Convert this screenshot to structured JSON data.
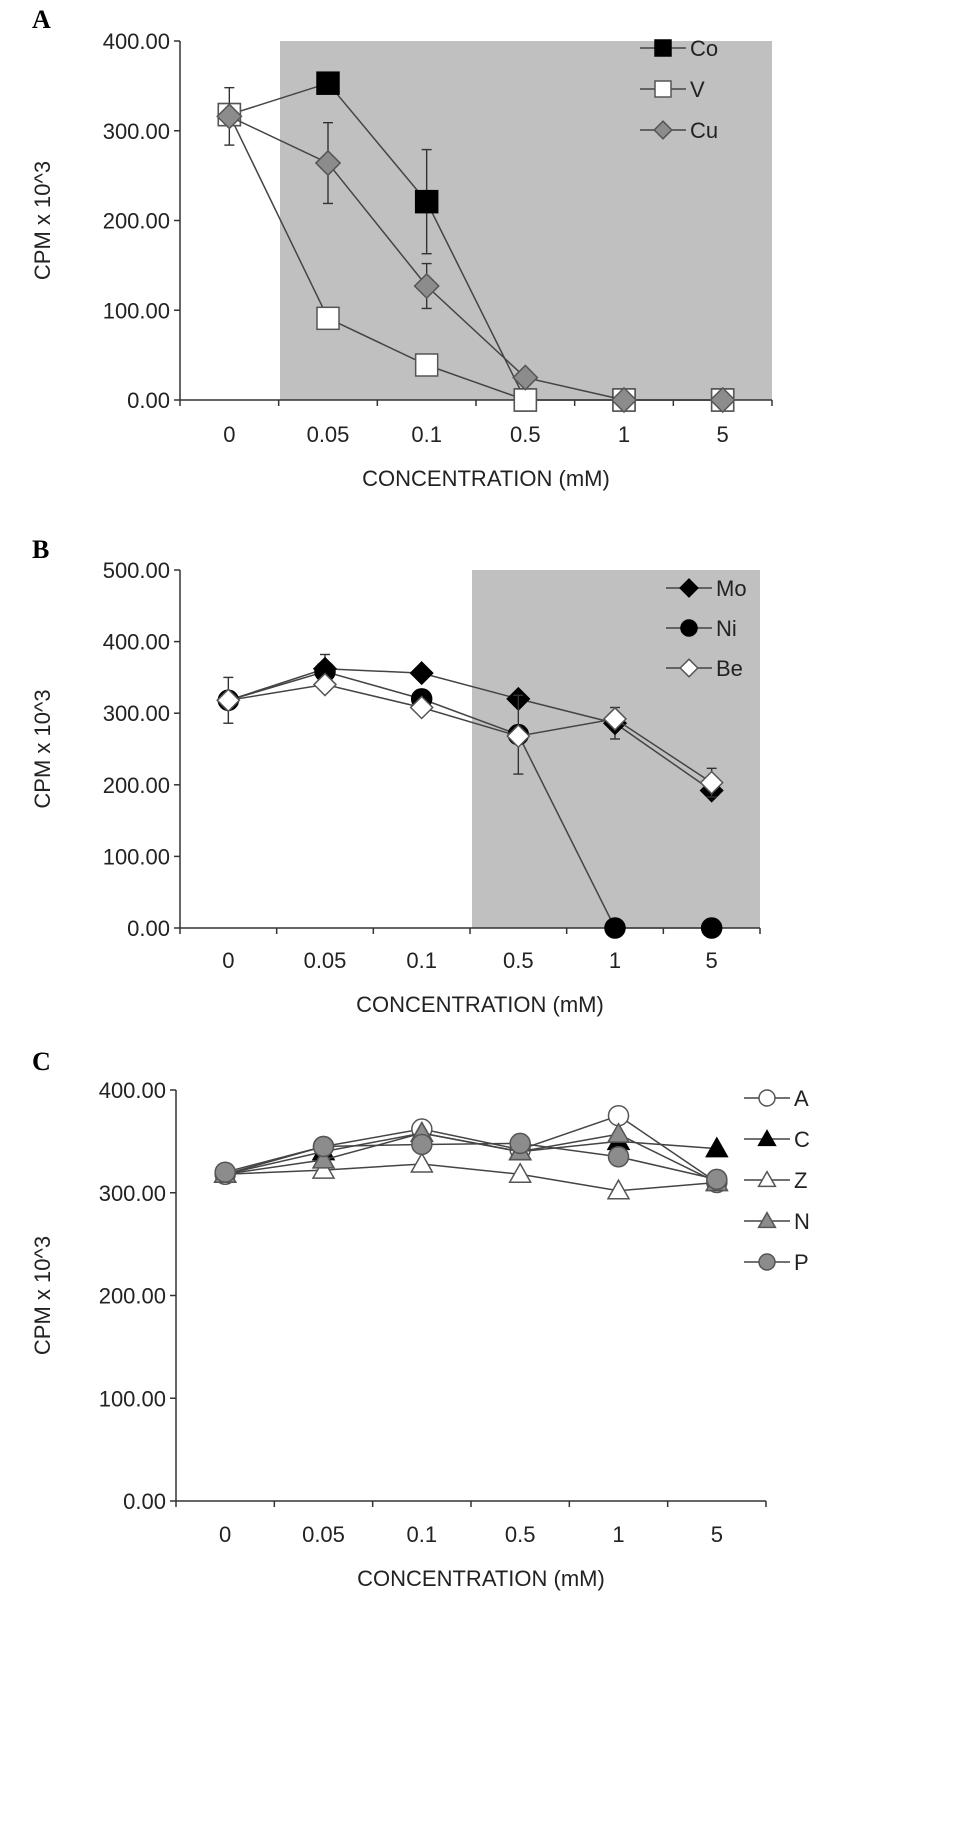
{
  "chart_data": [
    {
      "panel": "A",
      "type": "line",
      "title": "",
      "xlabel": "CONCENTRATION (mM)",
      "ylabel": "CPM x 10^3",
      "categories": [
        "0",
        "0.05",
        "0.1",
        "0.5",
        "1",
        "5"
      ],
      "ylim": [
        0,
        400
      ],
      "yticks": [
        "0.00",
        "100.00",
        "200.00",
        "300.00",
        "400.00"
      ],
      "shaded_from_category": "0.05",
      "shaded_color": "#c0c0c0",
      "legend_position": "top-right",
      "series": [
        {
          "name": "Co",
          "marker": "square",
          "fill": "#000000",
          "values": [
            318,
            353,
            221,
            0,
            0,
            0
          ],
          "errors": [
            0,
            0,
            58,
            0,
            0,
            0
          ]
        },
        {
          "name": "V",
          "marker": "square",
          "fill": "#ffffff",
          "values": [
            318,
            91,
            39,
            0,
            0,
            0
          ],
          "errors": [
            0,
            0,
            0,
            0,
            0,
            0
          ]
        },
        {
          "name": "Cu",
          "marker": "diamond",
          "fill": "#8c8c8c",
          "values": [
            316,
            264,
            127,
            25,
            0,
            0
          ],
          "errors": [
            32,
            45,
            25,
            0,
            0,
            0
          ]
        }
      ]
    },
    {
      "panel": "B",
      "type": "line",
      "title": "",
      "xlabel": "CONCENTRATION (mM)",
      "ylabel": "CPM x 10^3",
      "categories": [
        "0",
        "0.05",
        "0.1",
        "0.5",
        "1",
        "5"
      ],
      "ylim": [
        0,
        500
      ],
      "yticks": [
        "0.00",
        "100.00",
        "200.00",
        "300.00",
        "400.00",
        "500.00"
      ],
      "shaded_from_category": "0.5",
      "shaded_color": "#c0c0c0",
      "legend_position": "top-right",
      "series": [
        {
          "name": "Mo",
          "marker": "diamond",
          "fill": "#000000",
          "values": [
            318,
            362,
            356,
            320,
            286,
            192
          ],
          "errors": [
            0,
            20,
            0,
            0,
            22,
            0
          ]
        },
        {
          "name": "Ni",
          "marker": "circle",
          "fill": "#000000",
          "values": [
            318,
            358,
            320,
            270,
            0,
            0
          ],
          "errors": [
            0,
            0,
            0,
            55,
            0,
            0
          ]
        },
        {
          "name": "Be",
          "marker": "diamond",
          "fill": "#ffffff",
          "values": [
            318,
            340,
            308,
            268,
            292,
            203
          ],
          "errors": [
            32,
            0,
            0,
            0,
            0,
            20
          ]
        }
      ]
    },
    {
      "panel": "C",
      "type": "line",
      "title": "",
      "xlabel": "CONCENTRATION (mM)",
      "ylabel": "CPM x 10^3",
      "categories": [
        "0",
        "0.05",
        "0.1",
        "0.5",
        "1",
        "5"
      ],
      "ylim": [
        0,
        400
      ],
      "yticks": [
        "0.00",
        "100.00",
        "200.00",
        "300.00",
        "400.00"
      ],
      "shaded_from_category": "",
      "shaded_color": "",
      "legend_position": "right",
      "series": [
        {
          "name": "A",
          "marker": "circle",
          "fill": "#ffffff",
          "values": [
            318,
            345,
            362,
            342,
            375,
            310
          ],
          "errors": [
            0,
            0,
            0,
            0,
            0,
            0
          ]
        },
        {
          "name": "C",
          "marker": "triangle",
          "fill": "#000000",
          "values": [
            318,
            340,
            358,
            340,
            350,
            343
          ],
          "errors": [
            0,
            0,
            0,
            0,
            0,
            0
          ]
        },
        {
          "name": "Z",
          "marker": "triangle",
          "fill": "#ffffff",
          "values": [
            318,
            322,
            328,
            318,
            302,
            310
          ],
          "errors": [
            0,
            0,
            0,
            0,
            0,
            0
          ]
        },
        {
          "name": "N",
          "marker": "triangle",
          "fill": "#8c8c8c",
          "values": [
            318,
            332,
            358,
            340,
            357,
            310
          ],
          "errors": [
            0,
            0,
            0,
            0,
            0,
            0
          ]
        },
        {
          "name": "P",
          "marker": "circle",
          "fill": "#8c8c8c",
          "values": [
            320,
            345,
            347,
            348,
            335,
            313
          ],
          "errors": [
            0,
            0,
            0,
            0,
            0,
            0
          ]
        }
      ]
    }
  ]
}
